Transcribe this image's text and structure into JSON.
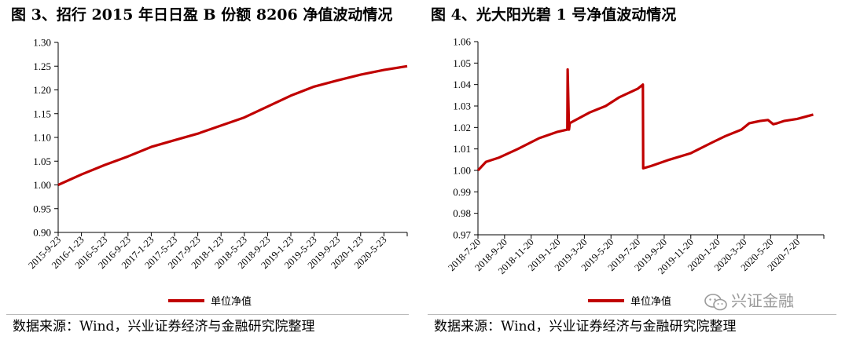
{
  "figures": {
    "left": {
      "title": "图 3、招行 2015 年日日盈 B 份额 8206 净值波动情况",
      "source": "数据来源：Wind，兴业证券经济与金融研究院整理"
    },
    "right": {
      "title": "图 4、光大阳光碧 1 号净值波动情况",
      "source": "数据来源：Wind，兴业证券经济与金融研究院整理"
    }
  },
  "watermark": {
    "text": "兴证金融",
    "icon": "wechat-icon"
  },
  "colors": {
    "series": "#c00000",
    "axis": "#000000",
    "text": "#000000"
  },
  "chart_data": [
    {
      "type": "line",
      "title": "图 3、招行 2015 年日日盈 B 份额 8206 净值波动情况",
      "xlabel": "",
      "ylabel": "",
      "ylim": [
        0.9,
        1.3
      ],
      "y_ticks": [
        "0.90",
        "0.95",
        "1.00",
        "1.05",
        "1.10",
        "1.15",
        "1.20",
        "1.25",
        "1.30"
      ],
      "x_ticks": [
        "2015-9-23",
        "2016-1-23",
        "2016-5-23",
        "2016-9-23",
        "2017-1-23",
        "2017-5-23",
        "2017-9-23",
        "2018-1-23",
        "2018-5-23",
        "2018-9-23",
        "2019-1-23",
        "2019-5-23",
        "2019-9-23",
        "2020-1-23",
        "2020-5-23"
      ],
      "legend": {
        "label": "单位净值",
        "position": "bottom-center"
      },
      "grid": false,
      "series": [
        {
          "name": "单位净值",
          "x": [
            0,
            1,
            2,
            3,
            4,
            5,
            6,
            7,
            8,
            9,
            10,
            11,
            12,
            13,
            14,
            15
          ],
          "values": [
            1.0,
            1.022,
            1.042,
            1.06,
            1.08,
            1.094,
            1.108,
            1.125,
            1.142,
            1.165,
            1.188,
            1.207,
            1.22,
            1.232,
            1.242,
            1.25
          ]
        }
      ]
    },
    {
      "type": "line",
      "title": "图 4、光大阳光碧 1 号净值波动情况",
      "xlabel": "",
      "ylabel": "",
      "ylim": [
        0.97,
        1.06
      ],
      "y_ticks": [
        "0.97",
        "0.98",
        "0.99",
        "1.00",
        "1.01",
        "1.02",
        "1.03",
        "1.04",
        "1.05",
        "1.06"
      ],
      "x_ticks": [
        "2018-7-20",
        "2018-9-20",
        "2018-11-20",
        "2019-1-20",
        "2019-3-20",
        "2019-5-20",
        "2019-7-20",
        "2019-9-20",
        "2019-11-20",
        "2020-1-20",
        "2020-3-20",
        "2020-5-20",
        "2020-7-20"
      ],
      "legend": {
        "label": "单位净值",
        "position": "bottom-center"
      },
      "grid": false,
      "series": [
        {
          "name": "单位净值",
          "x": [
            0,
            0.3,
            0.8,
            1.5,
            2.3,
            3.0,
            3.36,
            3.37,
            3.42,
            3.45,
            3.6,
            4.2,
            4.8,
            5.3,
            6.0,
            6.2,
            6.21,
            6.5,
            7.2,
            8.0,
            8.8,
            9.3,
            9.9,
            10.2,
            10.4,
            10.6,
            10.9,
            11.1,
            11.25,
            11.5,
            12.0,
            12.6
          ],
          "values": [
            1.0,
            1.004,
            1.006,
            1.01,
            1.015,
            1.018,
            1.019,
            1.047,
            1.019,
            1.022,
            1.023,
            1.027,
            1.03,
            1.034,
            1.038,
            1.04,
            1.001,
            1.002,
            1.005,
            1.008,
            1.013,
            1.016,
            1.019,
            1.022,
            1.0225,
            1.023,
            1.0235,
            1.0215,
            1.022,
            1.023,
            1.024,
            1.026
          ]
        }
      ]
    }
  ]
}
